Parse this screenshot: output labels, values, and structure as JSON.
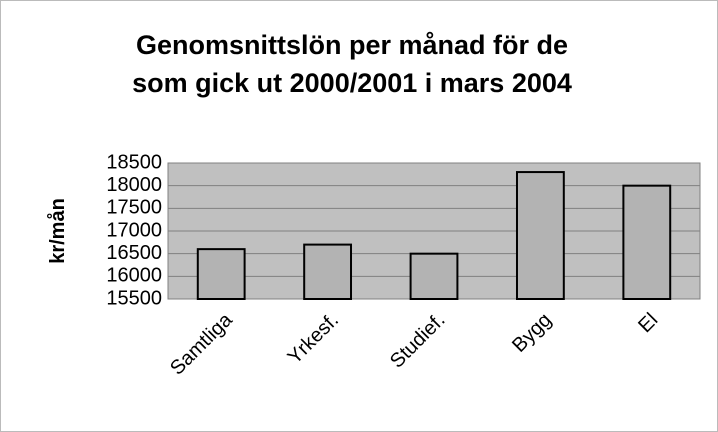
{
  "chart_data": {
    "type": "bar",
    "title": [
      "Genomsnittslön per månad för de",
      "som gick ut 2000/2001 i mars 2004"
    ],
    "y_label": "kr/mån",
    "categories": [
      "Samtliga",
      "Yrkesf.",
      "Studief.",
      "Bygg",
      "El"
    ],
    "values": [
      16600,
      16700,
      16500,
      18300,
      18000
    ],
    "color": "#b3b3b3",
    "plot_background": "#c0c0c0",
    "ylim": [
      15500,
      18500
    ],
    "yticks": [
      15500,
      16000,
      16500,
      17000,
      17500,
      18000,
      18500
    ],
    "grid": true
  }
}
